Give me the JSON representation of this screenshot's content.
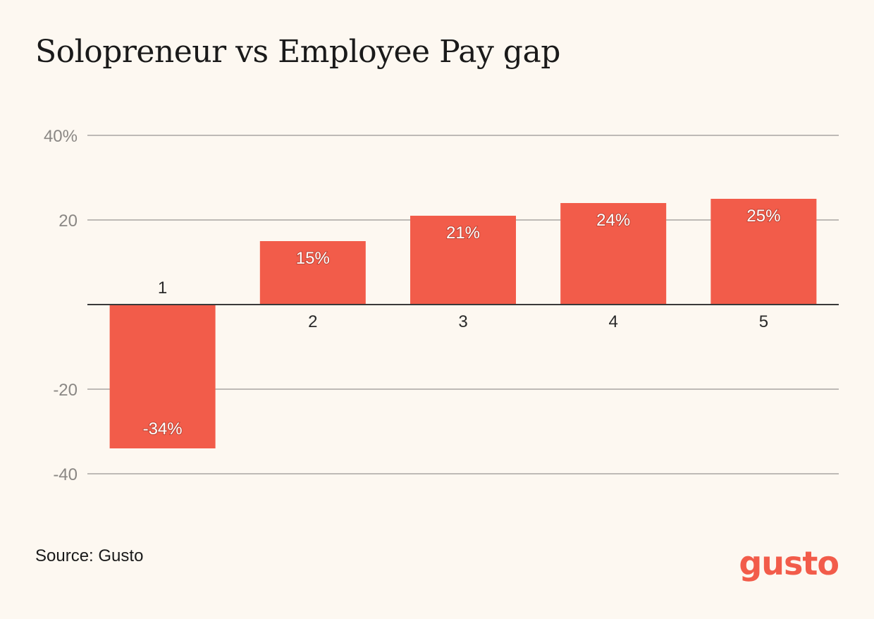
{
  "chart_data": {
    "type": "bar",
    "title": "Solopreneur vs Employee Pay gap",
    "xlabel": "",
    "ylabel": "",
    "categories": [
      "1",
      "2",
      "3",
      "4",
      "5"
    ],
    "values": [
      -34,
      15,
      21,
      24,
      25
    ],
    "data_labels": [
      "-34%",
      "15%",
      "21%",
      "24%",
      "25%"
    ],
    "ylim": [
      -40,
      40
    ],
    "yticks": [
      40,
      20,
      0,
      -20,
      -40
    ],
    "ytick_labels": [
      "40%",
      "20",
      "",
      "-20",
      "-40"
    ],
    "grid": true,
    "legend": "none",
    "bar_color": "#f25c4a"
  },
  "footer": {
    "source": "Source: Gusto",
    "logo_text": "gusto",
    "logo_color": "#f25c4a"
  }
}
